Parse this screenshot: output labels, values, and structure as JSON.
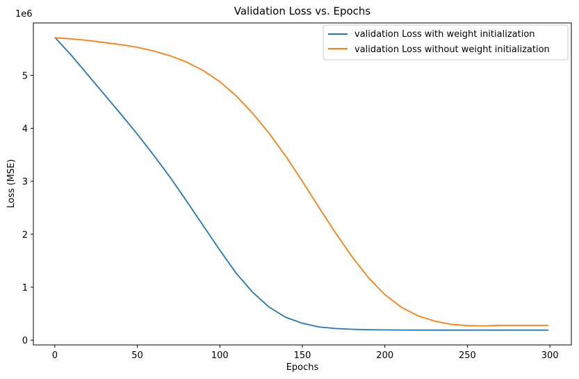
{
  "chart_data": {
    "type": "line",
    "title": "Validation Loss vs. Epochs",
    "xlabel": "Epochs",
    "ylabel": "Loss (MSE)",
    "y_offset_label": "1e6",
    "xlim": [
      -13,
      313
    ],
    "ylim": [
      -0.09,
      5.99
    ],
    "x_ticks": [
      0,
      50,
      100,
      150,
      200,
      250,
      300
    ],
    "y_ticks": [
      0,
      1,
      2,
      3,
      4,
      5
    ],
    "grid": false,
    "legend_position": "top-right",
    "x": [
      0,
      10,
      20,
      30,
      40,
      50,
      60,
      70,
      80,
      90,
      100,
      110,
      120,
      130,
      140,
      150,
      160,
      170,
      180,
      190,
      200,
      210,
      220,
      230,
      240,
      250,
      260,
      270,
      280,
      290,
      299
    ],
    "series": [
      {
        "name": "validation Loss with weight initialization",
        "color": "#1f77b4",
        "values": [
          5.72,
          5.38,
          5.01,
          4.64,
          4.27,
          3.89,
          3.49,
          3.07,
          2.62,
          2.16,
          1.7,
          1.26,
          0.9,
          0.62,
          0.43,
          0.32,
          0.25,
          0.22,
          0.205,
          0.197,
          0.193,
          0.191,
          0.19,
          0.19,
          0.19,
          0.19,
          0.19,
          0.19,
          0.19,
          0.19,
          0.19
        ]
      },
      {
        "name": "validation Loss without weight initialization",
        "color": "#ff7f0e",
        "values": [
          5.71,
          5.69,
          5.66,
          5.62,
          5.58,
          5.53,
          5.46,
          5.37,
          5.25,
          5.09,
          4.88,
          4.61,
          4.28,
          3.9,
          3.47,
          3.0,
          2.51,
          2.03,
          1.58,
          1.18,
          0.86,
          0.62,
          0.46,
          0.36,
          0.3,
          0.275,
          0.27,
          0.28,
          0.28,
          0.28,
          0.28
        ]
      }
    ]
  }
}
